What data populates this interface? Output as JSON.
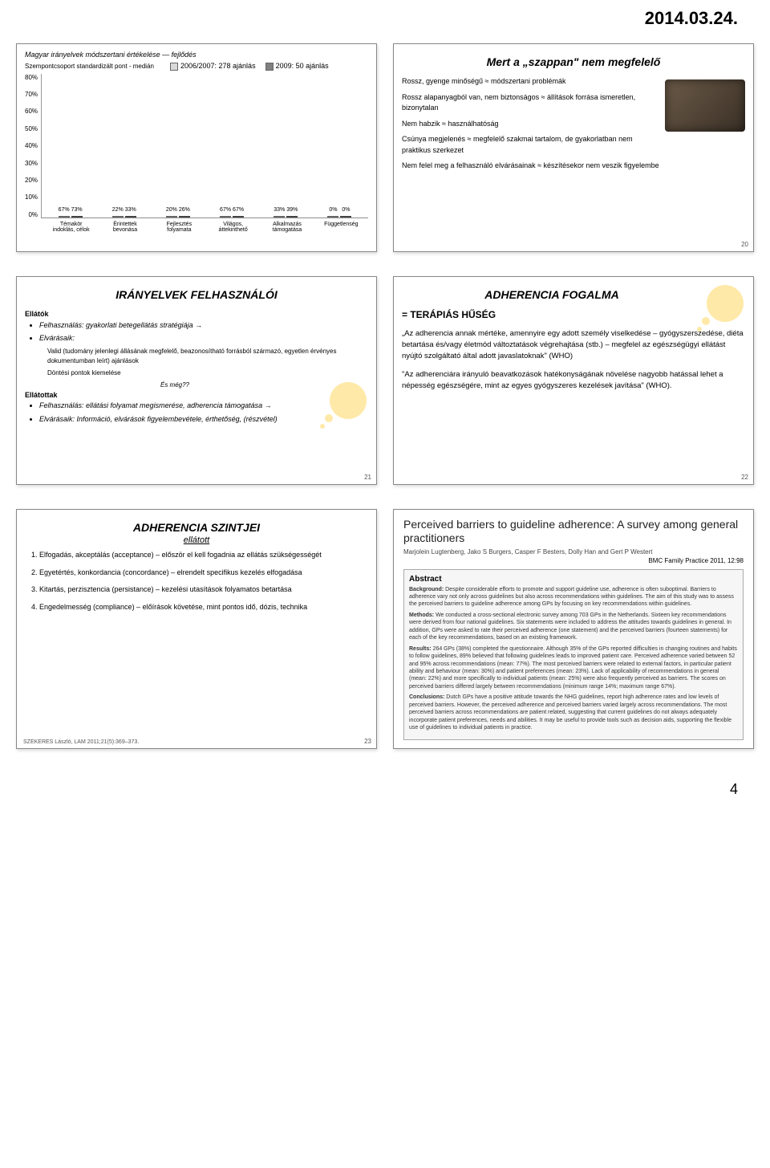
{
  "date": "2014.03.24.",
  "page_number": "4",
  "chart": {
    "type": "grouped-bar",
    "title_line1": "Magyar irányelvek módszertani értékelése — fejlődés",
    "subtitle_label": "Szempontcsoport standardizált pont - medián",
    "legend": [
      {
        "label": "2006/2007: 278 ajánlás",
        "color": "#d9d9d9"
      },
      {
        "label": "2009: 50 ajánlás",
        "color": "#808080"
      }
    ],
    "categories": [
      "Témakör indoklás, célok",
      "Érintettek bevonása",
      "Fejlesztés folyamata",
      "Világos, áttekinthető",
      "Alkalmazás támogatása",
      "Függetlenség"
    ],
    "series_a": [
      67,
      22,
      20,
      67,
      33,
      0
    ],
    "series_b": [
      73,
      33,
      26,
      67,
      39,
      0
    ],
    "value_labels_a": [
      "67%",
      "22%",
      "20%",
      "67%",
      "33%",
      "0%"
    ],
    "value_labels_b": [
      "73%",
      "33%",
      "26%",
      "67%",
      "39%",
      "0%"
    ],
    "y_ticks": [
      "80%",
      "70%",
      "60%",
      "50%",
      "40%",
      "30%",
      "20%",
      "10%",
      "0%"
    ],
    "y_max": 80,
    "bar_colors": [
      "#d9d9d9",
      "#808080"
    ],
    "background": "#ffffff",
    "border_color": "#999999",
    "label_fontsize": 8,
    "panel_num": ""
  },
  "soap": {
    "title": "Mert a „szappan\" nem megfelelő",
    "lines": [
      "Rossz, gyenge minőségű ≈ módszertani problémák",
      "Rossz alapanyagból van, nem biztonságos ≈ állítások forrása ismeretlen, bizonytalan",
      "Nem habzik ≈ használhatóság",
      "Csúnya megjelenés ≈ megfelelő szakmai tartalom, de gyakorlatban nem praktikus szerkezet",
      "Nem felel meg a felhasználó elvárásainak ≈ készítésekor nem veszik figyelembe"
    ],
    "panel_num": "20"
  },
  "users": {
    "title": "IRÁNYELVEK FELHASZNÁLÓI",
    "sections": {
      "ellatok": "Ellátók",
      "ellatok_items": [
        "Felhasználás: gyakorlati betegellátás stratégiája →",
        "Elvárásaik:"
      ],
      "ellatok_sub": [
        "Valid (tudomány jelenlegi állásának megfelelő, beazonosítható forrásból származó, egyetlen érvényes dokumentumban leírt) ajánlások",
        "Döntési pontok kiemelése"
      ],
      "es_meg": "És még??",
      "ellatottak": "Ellátottak",
      "ellatottak_items": [
        "Felhasználás: ellátási folyamat megismerése, adherencia támogatása →",
        "Elvárásaik: Információ, elvárások figyelembevétele, érthetőség, (részvétel)"
      ]
    },
    "panel_num": "21"
  },
  "adherence_def": {
    "title": "ADHERENCIA FOGALMA",
    "eq": "= TERÁPIÁS HŰSÉG",
    "quote1": "„Az adherencia annak mértéke, amennyire egy adott személy viselkedése – gyógyszerszedése, diéta betartása és/vagy életmód változtatások végrehajtása (stb.) – megfelel az egészségügyi ellátást nyújtó szolgáltató által adott javaslatoknak\" (WHO)",
    "quote2": "\"Az adherenciára irányuló beavatkozások hatékonyságának növelése nagyobb hatással lehet a népesség egészségére, mint az egyes gyógyszeres kezelések javítása\" (WHO).",
    "panel_num": "22"
  },
  "levels": {
    "title": "ADHERENCIA SZINTJEI",
    "subtitle": "ellátott",
    "items": [
      "Elfogadás, akceptálás (acceptance) – először el kell fogadnia az ellátás szükségességét",
      "Egyetértés, konkordancia (concordance) – elrendelt specifikus kezelés elfogadása",
      "Kitartás, perzisztencia (persistance) – kezelési utasítások folyamatos betartása",
      "Engedelmesség (compliance) – előírások követése, mint pontos idő, dózis, technika"
    ],
    "cite": "SZEKERES László, LAM 2011;21(5):369–373.",
    "panel_num": "23"
  },
  "abstract": {
    "title": "Perceived barriers to guideline adherence: A survey among general practitioners",
    "authors": "Marjolein Lugtenberg, Jako S Burgers, Casper F Besters, Dolly Han and Gert P Westert",
    "source": "BMC Family Practice 2011, 12:98",
    "heading": "Abstract",
    "background": "Background: Despite considerable efforts to promote and support guideline use, adherence is often suboptimal. Barriers to adherence vary not only across guidelines but also across recommendations within guidelines. The aim of this study was to assess the perceived barriers to guideline adherence among GPs by focusing on key recommendations within guidelines.",
    "methods": "Methods: We conducted a cross-sectional electronic survey among 703 GPs in the Netherlands. Sixteen key recommendations were derived from four national guidelines. Six statements were included to address the attitudes towards guidelines in general. In addition, GPs were asked to rate their perceived adherence (one statement) and the perceived barriers (fourteen statements) for each of the key recommendations, based on an existing framework.",
    "results": "Results: 264 GPs (38%) completed the questionnaire. Although 35% of the GPs reported difficulties in changing routines and habits to follow guidelines, 89% believed that following guidelines leads to improved patient care. Perceived adherence varied between 52 and 95% across recommendations (mean: 77%). The most perceived barriers were related to external factors, in particular patient ability and behaviour (mean: 30%) and patient preferences (mean: 23%). Lack of applicability of recommendations in general (mean: 22%) and more specifically to individual patients (mean: 25%) were also frequently perceived as barriers. The scores on perceived barriers differed largely between recommendations (minimum range 14%; maximum range 67%).",
    "conclusions": "Conclusions: Dutch GPs have a positive attitude towards the NHG guidelines, report high adherence rates and low levels of perceived barriers. However, the perceived adherence and perceived barriers varied largely across recommendations. The most perceived barriers across recommendations are patient related, suggesting that current guidelines do not always adequately incorporate patient preferences, needs and abilities. It may be useful to provide tools such as decision aids, supporting the flexible use of guidelines to individual patients in practice.",
    "panel_num": ""
  }
}
